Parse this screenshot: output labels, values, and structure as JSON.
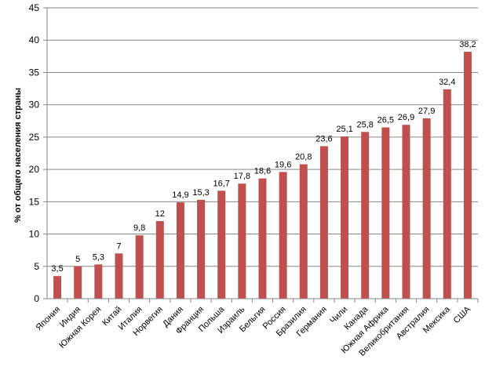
{
  "chart_data": {
    "type": "bar",
    "title": "",
    "xlabel": "",
    "ylabel": "% от общего населения страны",
    "ylim": [
      0,
      45
    ],
    "ytick_step": 5,
    "yticks": [
      "0",
      "5",
      "10",
      "15",
      "20",
      "25",
      "30",
      "35",
      "40",
      "45"
    ],
    "grid": true,
    "legend": "none",
    "bar_color": "#C0504D",
    "grid_color": "#868686",
    "categories": [
      "Япония",
      "Индия",
      "Южная Корея",
      "Китай",
      "Италия",
      "Норвегия",
      "Дания",
      "Франция",
      "Польша",
      "Израиль",
      "Бельгия",
      "Россия",
      "Бразилия",
      "Германия",
      "Чили",
      "Канада",
      "Южная Африка",
      "Великобритания",
      "Австралия",
      "Мексика",
      "США"
    ],
    "values": [
      3.5,
      5,
      5.3,
      7,
      9.8,
      12,
      14.9,
      15.3,
      16.7,
      17.8,
      18.6,
      19.6,
      20.8,
      23.6,
      25.1,
      25.8,
      26.5,
      26.9,
      27.9,
      32.4,
      38.2
    ],
    "value_labels": [
      "3,5",
      "5",
      "5,3",
      "7",
      "9,8",
      "12",
      "14,9",
      "15,3",
      "16,7",
      "17,8",
      "18,6",
      "19,6",
      "20,8",
      "23,6",
      "25,1",
      "25,8",
      "26,5",
      "26,9",
      "27,9",
      "32,4",
      "38,2"
    ]
  }
}
